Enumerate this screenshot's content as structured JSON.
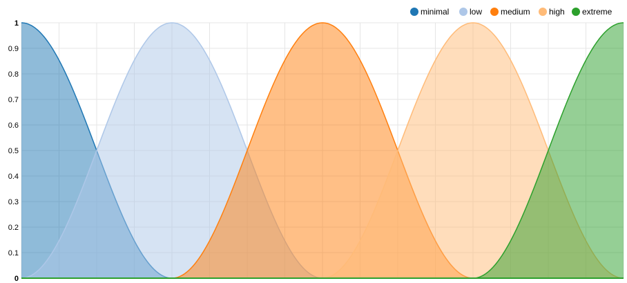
{
  "chart_data": {
    "type": "area",
    "xlim": [
      0,
      1
    ],
    "ylim": [
      0,
      1
    ],
    "yticks": [
      "0",
      "0.1",
      "0.2",
      "0.3",
      "0.4",
      "0.5",
      "0.6",
      "0.7",
      "0.8",
      "0.9",
      "1"
    ],
    "grid": true,
    "legend_position": "top-right",
    "series": [
      {
        "name": "minimal",
        "color": "#1f77b4",
        "x": [
          0.0,
          0.25
        ],
        "peak": 0.0
      },
      {
        "name": "low",
        "color": "#aec7e8",
        "x": [
          0.0,
          0.5
        ],
        "peak": 0.25
      },
      {
        "name": "medium",
        "color": "#ff7f0e",
        "x": [
          0.25,
          0.75
        ],
        "peak": 0.5
      },
      {
        "name": "high",
        "color": "#ffbb78",
        "x": [
          0.5,
          1.0
        ],
        "peak": 0.75
      },
      {
        "name": "extreme",
        "color": "#2ca02c",
        "x": [
          0.75,
          1.0
        ],
        "peak": 1.0
      }
    ]
  }
}
